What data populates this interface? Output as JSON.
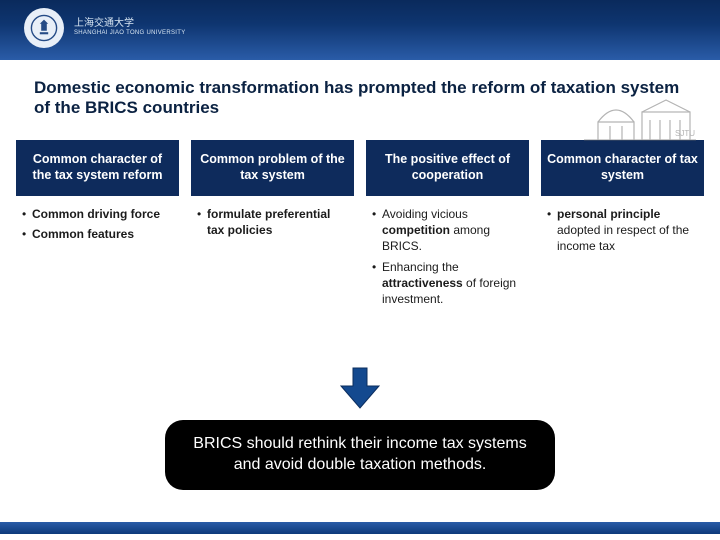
{
  "colors": {
    "header_gradient_from": "#0a2a5c",
    "header_gradient_to": "#2a5ca8",
    "col_head_bg": "#0e2b5c",
    "col_head_fg": "#ffffff",
    "title_color": "#0b2242",
    "arrow_fill": "#13498f",
    "callout_bg": "#000000",
    "callout_fg": "#ffffff"
  },
  "university": {
    "name_zh": "上海交通大学",
    "name_en": "SHANGHAI JIAO TONG UNIVERSITY"
  },
  "title": "Domestic economic transformation has prompted the reform of taxation system of the BRICS countries",
  "columns": [
    {
      "head": "Common character of the tax system reform",
      "bullets": [
        {
          "html": "<b>Common driving force</b>"
        },
        {
          "html": "<b>Common features</b>"
        }
      ]
    },
    {
      "head": "Common problem of the tax system",
      "bullets": [
        {
          "html": "<b>formulate preferential tax policies</b>"
        }
      ]
    },
    {
      "head": "The positive effect of cooperation",
      "bullets": [
        {
          "html": "Avoiding vicious <b>competition</b> among BRICS."
        },
        {
          "html": "Enhancing the <b>attractiveness</b> of foreign investment."
        }
      ]
    },
    {
      "head": "Common character of tax system",
      "bullets": [
        {
          "html": "<b>personal principle</b> adopted in respect of the income tax"
        }
      ]
    }
  ],
  "callout": "BRICS should rethink their income tax systems and avoid double taxation methods."
}
